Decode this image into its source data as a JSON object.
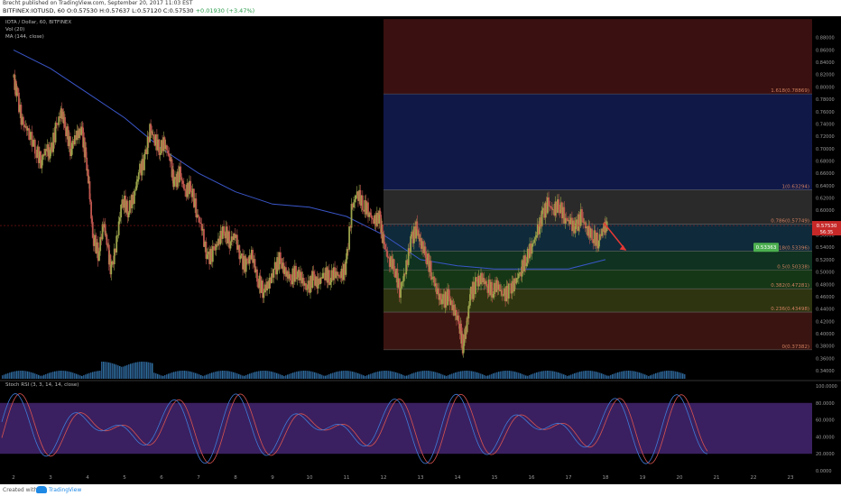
{
  "header": {
    "published_line": "Brecht published on TradingView.com, September 20, 2017 11:03 EST",
    "symbol": "BITFINEX:IOTUSD, 60",
    "ohlc": "O:0.57530 H:0.57637 L:0.57120 C:0.57530",
    "change": "+0.01930 (+3.47%)"
  },
  "legend": {
    "title": "IOTA / Dollar, 60, BITFINEX",
    "vol": "Vol (20)",
    "ma": "MA (144, close)"
  },
  "rsi": {
    "label": "Stoch RSI (3, 3, 14, 14, close)"
  },
  "footer": {
    "created": "Created with",
    "brand": "TradingView"
  },
  "colors": {
    "up": "#9aa34a",
    "down": "#c0574f",
    "ma": "#3a56c8",
    "stoch_k": "#3f7bd9",
    "stoch_d": "#d9534f",
    "rsi_band": "#3a2060"
  },
  "chart_data": {
    "type": "candlestick",
    "title": "IOTA / Dollar, 60, BITFINEX",
    "ylim": [
      0.34,
      0.9
    ],
    "price_ticks": [
      "0.88000",
      "0.86000",
      "0.84000",
      "0.82000",
      "0.80000",
      "0.78000",
      "0.76000",
      "0.74000",
      "0.72000",
      "0.70000",
      "0.68000",
      "0.66000",
      "0.64000",
      "0.62000",
      "0.60000",
      "0.58000",
      "0.56000",
      "0.54000",
      "0.52000",
      "0.50000",
      "0.48000",
      "0.46000",
      "0.44000",
      "0.42000",
      "0.40000",
      "0.38000",
      "0.36000",
      "0.34000"
    ],
    "x_ticks": [
      "2",
      "3",
      "4",
      "5",
      "6",
      "7",
      "8",
      "9",
      "10",
      "11",
      "12",
      "13",
      "14",
      "15",
      "16",
      "17",
      "18",
      "19",
      "20",
      "21",
      "22",
      "23"
    ],
    "rsi_ticks": [
      "100.0000",
      "80.0000",
      "60.0000",
      "40.0000",
      "20.0000",
      "0.0000"
    ],
    "current_price": "0.57530",
    "countdown": "56:35",
    "target_label": "0.53363",
    "fib_levels": [
      {
        "label": "1.618(0.78869)",
        "value": 0.78869
      },
      {
        "label": "1(0.63294)",
        "value": 0.63294
      },
      {
        "label": "0.786(0.57749)",
        "value": 0.57749
      },
      {
        "label": "0.618(0.53396)",
        "value": 0.53396
      },
      {
        "label": "0.5(0.50338)",
        "value": 0.50338
      },
      {
        "label": "0.382(0.47281)",
        "value": 0.47281
      },
      {
        "label": "0.236(0.43498)",
        "value": 0.43498
      },
      {
        "label": "0(0.37382)",
        "value": 0.37382
      }
    ],
    "price_path": [
      [
        2.0,
        0.815
      ],
      [
        2.1,
        0.79
      ],
      [
        2.25,
        0.74
      ],
      [
        2.4,
        0.73
      ],
      [
        2.6,
        0.7
      ],
      [
        2.75,
        0.68
      ],
      [
        2.9,
        0.7
      ],
      [
        3.0,
        0.69
      ],
      [
        3.15,
        0.73
      ],
      [
        3.3,
        0.76
      ],
      [
        3.4,
        0.74
      ],
      [
        3.55,
        0.7
      ],
      [
        3.7,
        0.72
      ],
      [
        3.85,
        0.73
      ],
      [
        3.95,
        0.69
      ],
      [
        4.05,
        0.64
      ],
      [
        4.15,
        0.56
      ],
      [
        4.3,
        0.53
      ],
      [
        4.45,
        0.58
      ],
      [
        4.55,
        0.54
      ],
      [
        4.65,
        0.5
      ],
      [
        4.8,
        0.55
      ],
      [
        4.95,
        0.62
      ],
      [
        5.1,
        0.6
      ],
      [
        5.25,
        0.62
      ],
      [
        5.4,
        0.66
      ],
      [
        5.55,
        0.68
      ],
      [
        5.7,
        0.73
      ],
      [
        5.8,
        0.72
      ],
      [
        5.95,
        0.7
      ],
      [
        6.1,
        0.71
      ],
      [
        6.25,
        0.68
      ],
      [
        6.35,
        0.64
      ],
      [
        6.5,
        0.66
      ],
      [
        6.65,
        0.63
      ],
      [
        6.8,
        0.64
      ],
      [
        6.95,
        0.6
      ],
      [
        7.1,
        0.57
      ],
      [
        7.25,
        0.52
      ],
      [
        7.4,
        0.53
      ],
      [
        7.55,
        0.55
      ],
      [
        7.7,
        0.57
      ],
      [
        7.85,
        0.55
      ],
      [
        8.0,
        0.56
      ],
      [
        8.15,
        0.52
      ],
      [
        8.3,
        0.51
      ],
      [
        8.45,
        0.53
      ],
      [
        8.6,
        0.49
      ],
      [
        8.75,
        0.47
      ],
      [
        8.9,
        0.48
      ],
      [
        9.05,
        0.5
      ],
      [
        9.2,
        0.52
      ],
      [
        9.35,
        0.5
      ],
      [
        9.5,
        0.49
      ],
      [
        9.65,
        0.5
      ],
      [
        9.8,
        0.49
      ],
      [
        9.95,
        0.47
      ],
      [
        10.1,
        0.49
      ],
      [
        10.25,
        0.48
      ],
      [
        10.4,
        0.5
      ],
      [
        10.55,
        0.49
      ],
      [
        10.7,
        0.5
      ],
      [
        10.85,
        0.49
      ],
      [
        11.0,
        0.51
      ],
      [
        11.15,
        0.6
      ],
      [
        11.3,
        0.63
      ],
      [
        11.45,
        0.61
      ],
      [
        11.6,
        0.6
      ],
      [
        11.75,
        0.58
      ],
      [
        11.9,
        0.59
      ],
      [
        12.0,
        0.55
      ],
      [
        12.15,
        0.52
      ],
      [
        12.3,
        0.51
      ],
      [
        12.45,
        0.47
      ],
      [
        12.6,
        0.5
      ],
      [
        12.75,
        0.55
      ],
      [
        12.9,
        0.57
      ],
      [
        13.0,
        0.55
      ],
      [
        13.15,
        0.53
      ],
      [
        13.3,
        0.5
      ],
      [
        13.45,
        0.47
      ],
      [
        13.6,
        0.45
      ],
      [
        13.75,
        0.46
      ],
      [
        13.9,
        0.44
      ],
      [
        14.05,
        0.42
      ],
      [
        14.15,
        0.38
      ],
      [
        14.25,
        0.41
      ],
      [
        14.35,
        0.46
      ],
      [
        14.5,
        0.48
      ],
      [
        14.65,
        0.49
      ],
      [
        14.8,
        0.48
      ],
      [
        14.95,
        0.47
      ],
      [
        15.1,
        0.48
      ],
      [
        15.25,
        0.46
      ],
      [
        15.4,
        0.47
      ],
      [
        15.55,
        0.48
      ],
      [
        15.7,
        0.5
      ],
      [
        15.85,
        0.52
      ],
      [
        16.0,
        0.54
      ],
      [
        16.15,
        0.56
      ],
      [
        16.3,
        0.59
      ],
      [
        16.45,
        0.61
      ],
      [
        16.6,
        0.6
      ],
      [
        16.75,
        0.61
      ],
      [
        16.9,
        0.59
      ],
      [
        17.05,
        0.58
      ],
      [
        17.2,
        0.57
      ],
      [
        17.35,
        0.59
      ],
      [
        17.5,
        0.57
      ],
      [
        17.65,
        0.56
      ],
      [
        17.8,
        0.55
      ],
      [
        17.95,
        0.57
      ],
      [
        18.05,
        0.575
      ]
    ],
    "ma_path": [
      [
        2.0,
        0.86
      ],
      [
        3,
        0.83
      ],
      [
        4,
        0.79
      ],
      [
        5,
        0.75
      ],
      [
        6,
        0.7
      ],
      [
        7,
        0.66
      ],
      [
        8,
        0.63
      ],
      [
        9,
        0.61
      ],
      [
        10,
        0.605
      ],
      [
        11,
        0.59
      ],
      [
        12,
        0.56
      ],
      [
        13,
        0.52
      ],
      [
        14,
        0.51
      ],
      [
        15,
        0.505
      ],
      [
        16,
        0.505
      ],
      [
        17,
        0.505
      ],
      [
        18,
        0.52
      ]
    ],
    "forecast": {
      "from": [
        17.95,
        0.58
      ],
      "to": [
        18.55,
        0.535
      ]
    }
  }
}
